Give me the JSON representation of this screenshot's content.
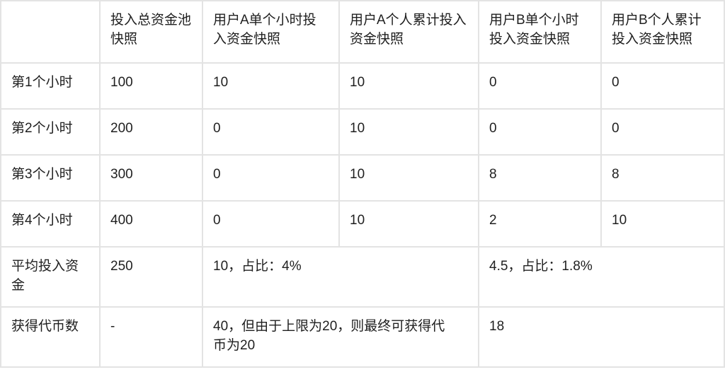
{
  "table": {
    "headers": [
      "",
      "投入总资金池快照",
      "用户A单个小时投入资金快照",
      "用户A个人累计投入资金快照",
      "用户B单个小时投入资金快照",
      "用户B个人累计投入资金快照"
    ],
    "rows": [
      [
        "第1个小时",
        "100",
        "10",
        "10",
        "0",
        "0"
      ],
      [
        "第2个小时",
        "200",
        "0",
        "10",
        "0",
        "0"
      ],
      [
        "第3个小时",
        "300",
        "0",
        "10",
        "8",
        "8"
      ],
      [
        "第4个小时",
        "400",
        "0",
        "10",
        "2",
        "10"
      ]
    ],
    "average": {
      "label": "平均投入资金",
      "pool": "250",
      "user_a": "10，占比：4%",
      "user_b": "4.5，占比：1.8%"
    },
    "tokens": {
      "label": "获得代币数",
      "pool": "-",
      "user_a": "40，但由于上限为20，则最终可获得代币为20",
      "user_b": "18"
    }
  }
}
